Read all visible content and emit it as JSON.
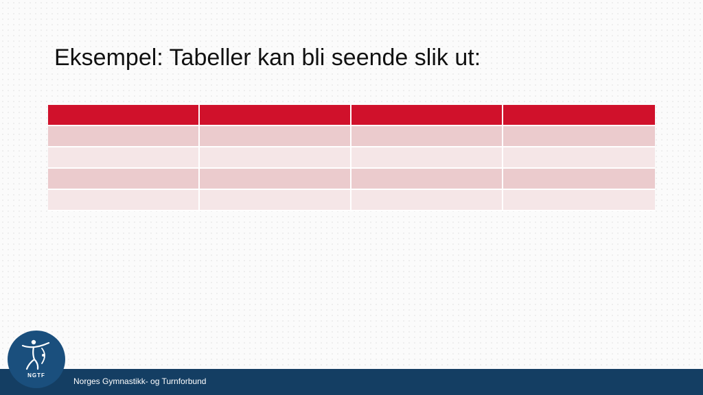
{
  "slide": {
    "title": "Eksempel: Tabeller kan bli seende slik ut:"
  },
  "table": {
    "columns": 4,
    "rows": [
      "header",
      "odd",
      "even",
      "odd",
      "even"
    ],
    "colors": {
      "header": "#d0112b",
      "odd": "#ebcbcd",
      "even": "#f5e6e7"
    }
  },
  "footer": {
    "organization": "Norges Gymnastikk- og Turnforbund",
    "logo_text": "NGTF",
    "background": "#143e63"
  },
  "icons": [
    "gymnast-logo-icon"
  ]
}
